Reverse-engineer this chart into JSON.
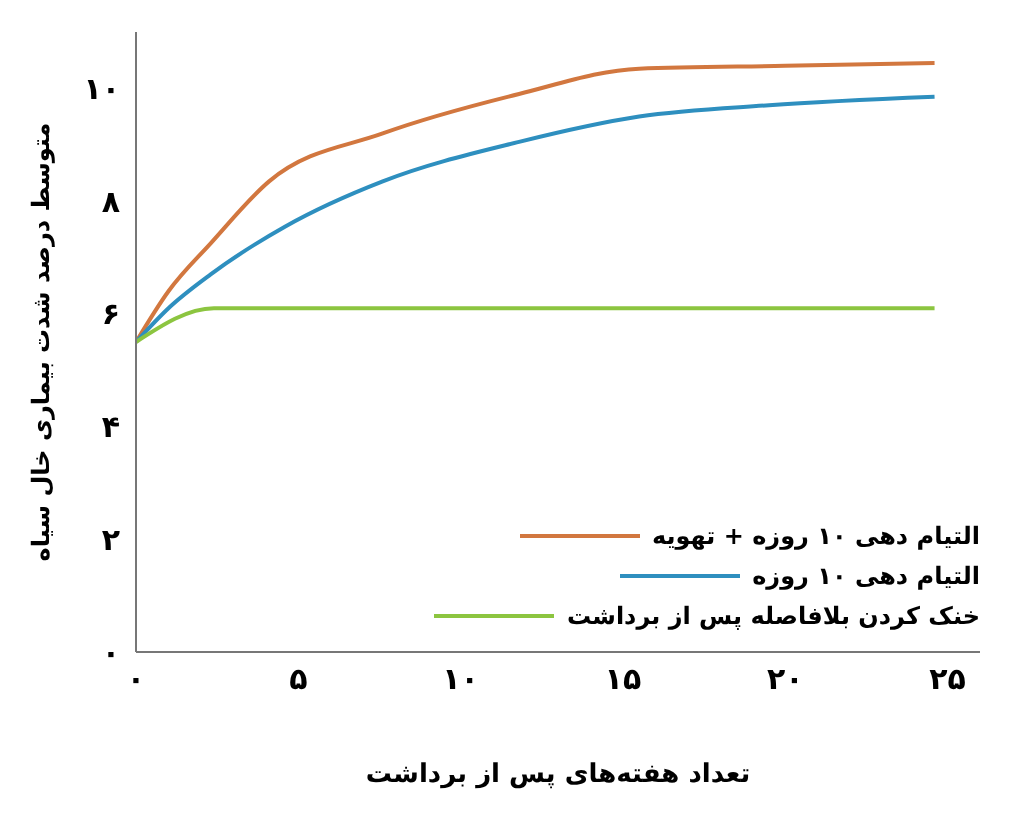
{
  "chart_data": {
    "type": "line",
    "xlabel": "تعداد هفته‌های پس از برداشت",
    "ylabel": "متوسط درصد شدت بیماری خال سیاه",
    "xlim": [
      0,
      26
    ],
    "ylim": [
      0,
      11
    ],
    "xticks": [
      {
        "value": 0,
        "label": "۰"
      },
      {
        "value": 5,
        "label": "۵"
      },
      {
        "value": 10,
        "label": "۱۰"
      },
      {
        "value": 15,
        "label": "۱۵"
      },
      {
        "value": 20,
        "label": "۲۰"
      },
      {
        "value": 25,
        "label": "۲۵"
      }
    ],
    "yticks": [
      {
        "value": 0,
        "label": "۰"
      },
      {
        "value": 2,
        "label": "۲"
      },
      {
        "value": 4,
        "label": "۴"
      },
      {
        "value": 6,
        "label": "۶"
      },
      {
        "value": 8,
        "label": "۸"
      },
      {
        "value": 10,
        "label": "۱۰"
      }
    ],
    "grid": false,
    "legend": "bottom right",
    "marker": "none",
    "line_style": "solid",
    "series": [
      {
        "name": "التیام دهی ۱۰ روزه + تهویه",
        "color": "#d2773f",
        "x": [
          0,
          1,
          2.3,
          4.1,
          7.6,
          11.8,
          15.5,
          20,
          24.6
        ],
        "values": [
          5.5,
          6.4,
          7.25,
          8.35,
          9.2,
          9.9,
          10.35,
          10.4,
          10.45
        ]
      },
      {
        "name": "التیام دهی ۱۰ روزه",
        "color": "#2e8fbf",
        "x": [
          0,
          1,
          2.3,
          4.6,
          7.6,
          11.8,
          15.5,
          19.5,
          24.6
        ],
        "values": [
          5.5,
          6.1,
          6.7,
          7.55,
          8.35,
          9.05,
          9.5,
          9.7,
          9.85
        ]
      },
      {
        "name": "خنک کردن  بلافاصله پس از برداشت",
        "color": "#8cc540",
        "x": [
          0,
          2.4,
          24.6
        ],
        "values": [
          5.5,
          6.1,
          6.1
        ]
      }
    ]
  }
}
